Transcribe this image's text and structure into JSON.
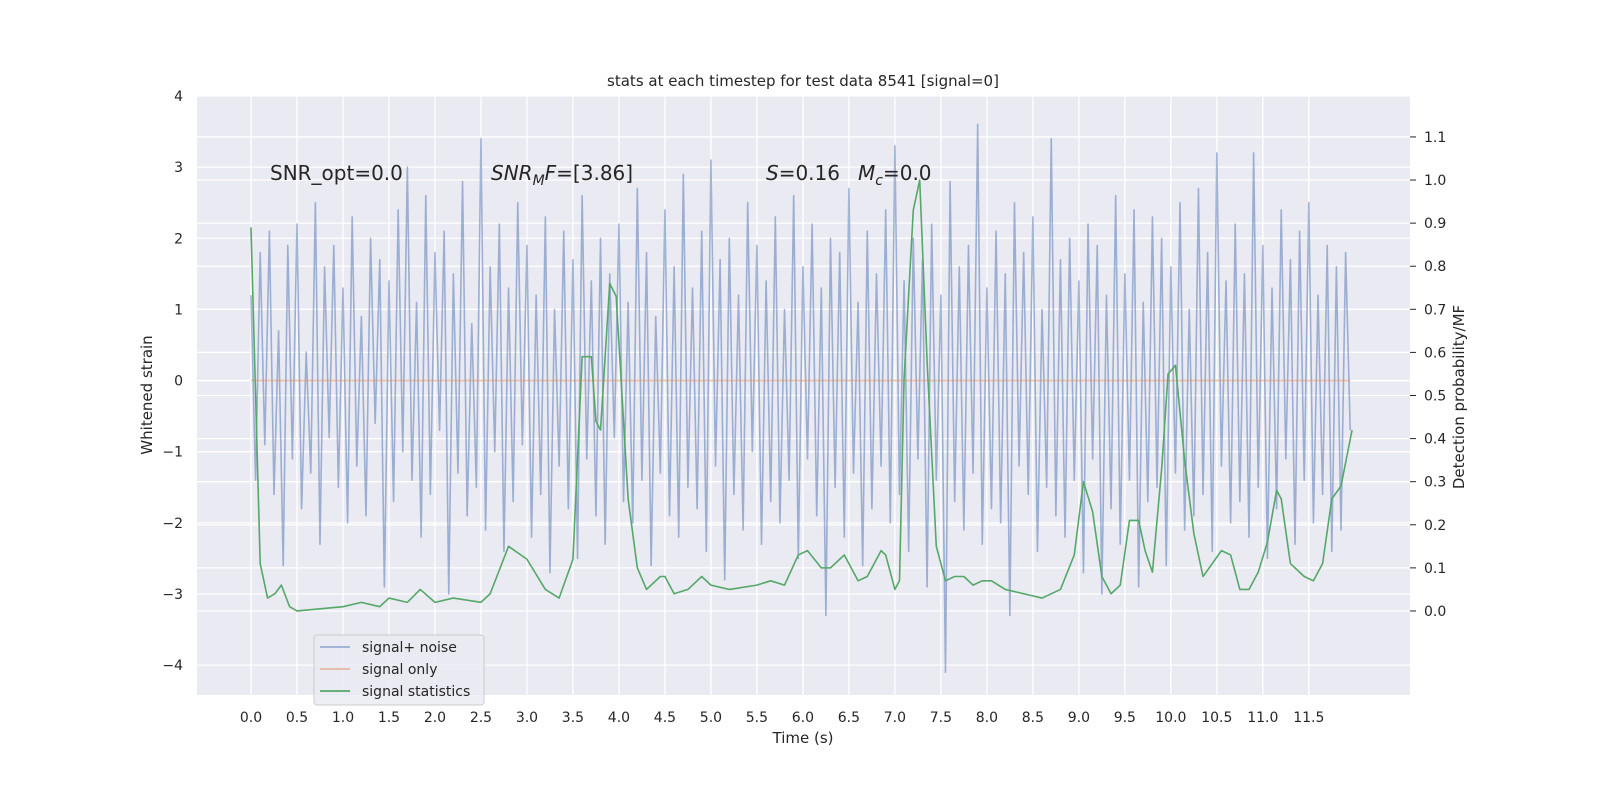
{
  "chart_data": {
    "type": "line",
    "title": "stats at each timestep for test data 8541 [signal=0]",
    "xlabel": "Time (s)",
    "ylabel": "Whitened strain",
    "y2label": "Detection probability/MF",
    "xlim": [
      -0.587,
      12.6
    ],
    "ylim": [
      -4.42,
      4.0
    ],
    "y2lim": [
      -0.195,
      1.195
    ],
    "xticks": [
      {
        "value": 0,
        "label": "0.0"
      },
      0.5,
      {
        "value": 1,
        "label": "1.0"
      },
      1.5,
      {
        "value": 2,
        "label": "2.0"
      },
      2.5,
      {
        "value": 3,
        "label": "3.0"
      },
      3.5,
      {
        "value": 4,
        "label": "4.0"
      },
      4.5,
      {
        "value": 5,
        "label": "5.0"
      },
      5.5,
      {
        "value": 6,
        "label": "6.0"
      },
      6.5,
      {
        "value": 7,
        "label": "7.0"
      },
      7.5,
      {
        "value": 8,
        "label": "8.0"
      },
      8.5,
      {
        "value": 9,
        "label": "9.0"
      },
      9.5,
      {
        "value": 10,
        "label": "10.0"
      },
      10.5,
      {
        "value": 11,
        "label": "11.0"
      },
      11.5
    ],
    "yticks": [
      {
        "value": -4,
        "label": "−4"
      },
      {
        "value": -3,
        "label": "−3"
      },
      {
        "value": -2,
        "label": "−2"
      },
      {
        "value": -1,
        "label": "−1"
      },
      0,
      1,
      2,
      3,
      4
    ],
    "y2ticks": [
      {
        "value": 0,
        "label": "0.0"
      },
      0.1,
      0.2,
      0.3,
      0.4,
      0.5,
      0.6,
      0.7,
      0.8,
      0.9,
      {
        "value": 1,
        "label": "1.0"
      },
      1.1
    ],
    "grid": true,
    "legend": "lower left",
    "annotations": [
      [
        {
          "text": "SNR_opt=0.0"
        }
      ],
      [
        {
          "text": "SNR",
          "style": "italic"
        },
        {
          "text": "M",
          "style": "italic-sub"
        },
        {
          "text": "F",
          "style": "italic"
        },
        {
          "text": "=[3.86]"
        }
      ],
      [
        {
          "text": "S",
          "style": "italic"
        },
        {
          "text": "=0.16"
        },
        {
          "text": "M",
          "style": "italic"
        },
        {
          "text": "c",
          "style": "italic-sub"
        },
        {
          "text": "=0.0"
        }
      ]
    ],
    "series": [
      {
        "name": "signal+ noise",
        "color": "#4c72b0",
        "alpha": 0.5,
        "x": [
          0,
          0.05,
          0.1,
          0.15,
          0.2,
          0.25,
          0.3,
          0.35,
          0.4,
          0.45,
          0.5,
          0.55,
          0.6,
          0.65,
          0.7,
          0.75,
          0.8,
          0.85,
          0.9,
          0.95,
          1,
          1.05,
          1.1,
          1.15,
          1.2,
          1.25,
          1.3,
          1.35,
          1.4,
          1.45,
          1.5,
          1.55,
          1.6,
          1.65,
          1.7,
          1.75,
          1.8,
          1.85,
          1.9,
          1.95,
          2,
          2.05,
          2.1,
          2.15,
          2.2,
          2.25,
          2.3,
          2.35,
          2.4,
          2.45,
          2.5,
          2.55,
          2.6,
          2.65,
          2.7,
          2.75,
          2.8,
          2.85,
          2.9,
          2.95,
          3,
          3.05,
          3.1,
          3.15,
          3.2,
          3.25,
          3.3,
          3.35,
          3.4,
          3.45,
          3.5,
          3.55,
          3.6,
          3.65,
          3.7,
          3.75,
          3.8,
          3.85,
          3.9,
          3.95,
          4,
          4.05,
          4.1,
          4.15,
          4.2,
          4.25,
          4.3,
          4.35,
          4.4,
          4.45,
          4.5,
          4.55,
          4.6,
          4.65,
          4.7,
          4.75,
          4.8,
          4.85,
          4.9,
          4.95,
          5,
          5.05,
          5.1,
          5.15,
          5.2,
          5.25,
          5.3,
          5.35,
          5.4,
          5.45,
          5.5,
          5.55,
          5.6,
          5.65,
          5.7,
          5.75,
          5.8,
          5.85,
          5.9,
          5.95,
          6,
          6.05,
          6.1,
          6.15,
          6.2,
          6.25,
          6.3,
          6.35,
          6.4,
          6.45,
          6.5,
          6.55,
          6.6,
          6.65,
          6.7,
          6.75,
          6.8,
          6.85,
          6.9,
          6.95,
          7,
          7.05,
          7.1,
          7.15,
          7.2,
          7.25,
          7.3,
          7.35,
          7.4,
          7.45,
          7.5,
          7.55,
          7.6,
          7.65,
          7.7,
          7.75,
          7.8,
          7.85,
          7.9,
          7.95,
          8,
          8.05,
          8.1,
          8.15,
          8.2,
          8.25,
          8.3,
          8.35,
          8.4,
          8.45,
          8.5,
          8.55,
          8.6,
          8.65,
          8.7,
          8.75,
          8.8,
          8.85,
          8.9,
          8.95,
          9,
          9.05,
          9.1,
          9.15,
          9.2,
          9.25,
          9.3,
          9.35,
          9.4,
          9.45,
          9.5,
          9.55,
          9.6,
          9.65,
          9.7,
          9.75,
          9.8,
          9.85,
          9.9,
          9.95,
          10,
          10.05,
          10.1,
          10.15,
          10.2,
          10.25,
          10.3,
          10.35,
          10.4,
          10.45,
          10.5,
          10.55,
          10.6,
          10.65,
          10.7,
          10.75,
          10.8,
          10.85,
          10.9,
          10.95,
          11,
          11.05,
          11.1,
          11.15,
          11.2,
          11.25,
          11.3,
          11.35,
          11.4,
          11.45,
          11.5,
          11.55,
          11.6,
          11.65,
          11.7,
          11.75,
          11.8,
          11.85,
          11.9,
          11.95
        ],
        "values": [
          1.2,
          -1.4,
          1.8,
          -0.9,
          2.1,
          -1.6,
          0.7,
          -2.6,
          1.9,
          -1.1,
          2.2,
          -1.8,
          0.4,
          -1.3,
          2.5,
          -2.3,
          1.6,
          -0.8,
          1.9,
          -1.5,
          1.3,
          -2.0,
          2.3,
          -1.2,
          0.9,
          -1.9,
          2.0,
          -0.6,
          1.7,
          -2.9,
          1.4,
          -1.7,
          2.4,
          -1.0,
          3.0,
          -1.4,
          1.1,
          -2.2,
          2.6,
          -1.6,
          1.8,
          -0.7,
          2.1,
          -3.0,
          1.5,
          -1.3,
          2.8,
          -1.9,
          0.8,
          -1.5,
          3.4,
          -2.1,
          1.6,
          -1.0,
          2.2,
          -2.4,
          1.3,
          -1.7,
          2.5,
          -0.9,
          1.9,
          -2.2,
          1.2,
          -1.6,
          2.3,
          -2.7,
          1.0,
          -1.2,
          2.1,
          -1.8,
          1.7,
          -2.5,
          2.6,
          -1.1,
          1.4,
          -1.9,
          2.0,
          -2.3,
          1.5,
          -0.8,
          2.2,
          -1.7,
          1.1,
          -2.0,
          2.7,
          -1.4,
          1.8,
          -2.6,
          0.9,
          -1.3,
          2.4,
          -1.9,
          1.6,
          -2.2,
          2.9,
          -1.5,
          1.3,
          -1.8,
          2.1,
          -2.4,
          3.1,
          -1.2,
          1.7,
          -2.8,
          2.0,
          -1.6,
          1.2,
          -2.1,
          2.5,
          -1.0,
          1.9,
          -2.3,
          1.4,
          -1.7,
          2.3,
          -2.0,
          1.0,
          -1.4,
          2.6,
          -2.5,
          1.6,
          -1.1,
          2.2,
          -1.9,
          1.3,
          -3.3,
          2.0,
          -1.5,
          1.8,
          -2.2,
          2.7,
          -1.3,
          1.1,
          -2.6,
          2.1,
          -1.8,
          1.5,
          -1.2,
          2.4,
          -2.0,
          3.3,
          -1.6,
          1.4,
          -2.4,
          2.0,
          -1.1,
          1.7,
          -2.9,
          2.2,
          -1.4,
          1.2,
          -4.1,
          2.8,
          -1.7,
          1.6,
          -2.1,
          1.9,
          -1.3,
          3.6,
          -2.3,
          1.3,
          -1.8,
          2.1,
          -2.0,
          1.5,
          -3.3,
          2.5,
          -1.2,
          1.8,
          -1.6,
          2.3,
          -2.4,
          1.0,
          -1.5,
          3.4,
          -1.9,
          1.7,
          -2.2,
          2.0,
          -1.4,
          1.4,
          -2.7,
          2.2,
          -1.1,
          1.9,
          -3.0,
          1.2,
          -1.8,
          2.6,
          -2.3,
          1.5,
          -1.4,
          2.4,
          -2.9,
          1.1,
          -1.7,
          2.3,
          -1.5,
          2.0,
          -2.6,
          1.6,
          -1.3,
          2.5,
          -2.1,
          1.0,
          -1.9,
          2.7,
          -1.6,
          1.8,
          -2.4,
          3.2,
          -1.2,
          1.4,
          -2.0,
          2.2,
          -1.7,
          1.5,
          -2.2,
          3.2,
          -1.5,
          1.9,
          -2.5,
          1.3,
          -1.8,
          2.4,
          -1.1,
          1.7,
          -2.3,
          2.1,
          -1.4,
          2.5,
          -2.0,
          1.2,
          -1.6,
          1.9,
          -2.4,
          1.6,
          -2.1,
          1.8,
          -0.7
        ]
      },
      {
        "name": "signal only",
        "color": "#dd8452",
        "alpha": 0.5,
        "x": [
          0,
          11.95
        ],
        "values": [
          0,
          0
        ]
      },
      {
        "name": "signal statistics",
        "color": "#55a868",
        "alpha": 1,
        "axis": "y2",
        "x": [
          0,
          0.1,
          0.18,
          0.26,
          0.33,
          0.42,
          0.5,
          1.0,
          1.2,
          1.4,
          1.5,
          1.7,
          1.84,
          2.0,
          2.2,
          2.5,
          2.6,
          2.8,
          3.0,
          3.2,
          3.35,
          3.5,
          3.6,
          3.7,
          3.75,
          3.8,
          3.9,
          3.97,
          4.1,
          4.2,
          4.3,
          4.45,
          4.5,
          4.6,
          4.75,
          4.9,
          5.0,
          5.2,
          5.5,
          5.65,
          5.8,
          5.95,
          6.05,
          6.2,
          6.3,
          6.45,
          6.6,
          6.7,
          6.85,
          6.9,
          7.0,
          7.05,
          7.1,
          7.2,
          7.27,
          7.35,
          7.45,
          7.55,
          7.65,
          7.75,
          7.85,
          7.95,
          8.05,
          8.2,
          8.4,
          8.6,
          8.8,
          8.95,
          9.05,
          9.15,
          9.25,
          9.35,
          9.45,
          9.55,
          9.65,
          9.72,
          9.8,
          9.9,
          9.97,
          10.05,
          10.15,
          10.25,
          10.35,
          10.45,
          10.55,
          10.65,
          10.75,
          10.85,
          10.95,
          11.05,
          11.15,
          11.2,
          11.3,
          11.45,
          11.55,
          11.65,
          11.75,
          11.85,
          11.97
        ],
        "values": [
          0.89,
          0.11,
          0.03,
          0.04,
          0.06,
          0.01,
          0.0,
          0.01,
          0.02,
          0.01,
          0.03,
          0.02,
          0.05,
          0.02,
          0.03,
          0.02,
          0.04,
          0.15,
          0.12,
          0.05,
          0.03,
          0.12,
          0.59,
          0.59,
          0.44,
          0.42,
          0.76,
          0.73,
          0.26,
          0.1,
          0.05,
          0.08,
          0.08,
          0.04,
          0.05,
          0.08,
          0.06,
          0.05,
          0.06,
          0.07,
          0.06,
          0.13,
          0.14,
          0.1,
          0.1,
          0.13,
          0.07,
          0.08,
          0.14,
          0.13,
          0.05,
          0.07,
          0.54,
          0.93,
          1.0,
          0.58,
          0.15,
          0.07,
          0.08,
          0.08,
          0.06,
          0.07,
          0.07,
          0.05,
          0.04,
          0.03,
          0.05,
          0.13,
          0.3,
          0.23,
          0.08,
          0.04,
          0.06,
          0.21,
          0.21,
          0.14,
          0.09,
          0.33,
          0.55,
          0.57,
          0.35,
          0.18,
          0.08,
          0.11,
          0.14,
          0.13,
          0.05,
          0.05,
          0.09,
          0.16,
          0.28,
          0.26,
          0.11,
          0.08,
          0.07,
          0.11,
          0.26,
          0.29,
          0.42
        ]
      }
    ]
  }
}
